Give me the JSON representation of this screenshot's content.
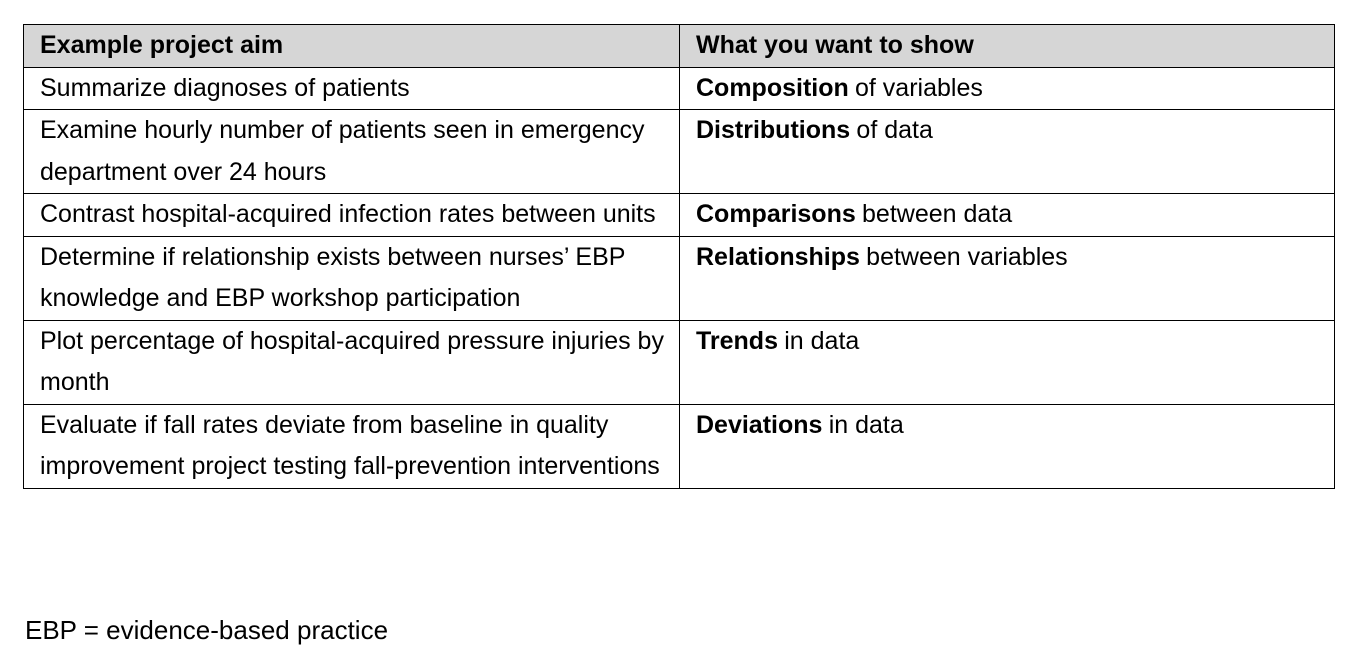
{
  "table": {
    "header": [
      "Example project aim",
      "What you want to show"
    ],
    "rows": [
      [
        "Summarize diagnoses of patients",
        {
          "bold": "Composition",
          "rest": "of variables"
        }
      ],
      [
        "Examine hourly number of patients seen in emergency department over 24 hours",
        {
          "bold": "Distributions",
          "rest": "of data"
        }
      ],
      [
        "Contrast hospital-acquired infection rates between units",
        {
          "bold": "Comparisons",
          "rest": "between data"
        }
      ],
      [
        "Determine if relationship exists between nurses’ EBP knowledge and EBP workshop participation",
        {
          "bold": "Relationships",
          "rest": "between variables"
        }
      ],
      [
        "Plot percentage of hospital-acquired pressure injuries by month",
        {
          "bold": "Trends",
          "rest": "in data"
        }
      ],
      [
        "Evaluate if fall rates deviate from baseline in quality improvement project testing fall-prevention interventions",
        {
          "bold": "Deviations",
          "rest": "in data"
        }
      ]
    ]
  },
  "footnote": "EBP = evidence-based practice"
}
